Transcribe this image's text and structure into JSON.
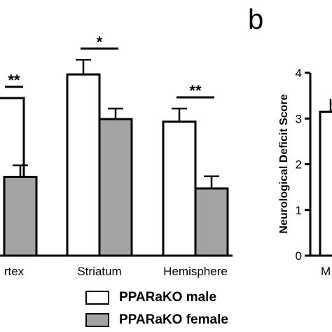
{
  "chart_data": [
    {
      "type": "bar",
      "panel": "a",
      "categories": [
        "rtex",
        "Striatum",
        "Hemisphere"
      ],
      "series": [
        {
          "name": "PPARaKO male",
          "color": "#ffffff",
          "values": [
            3.0,
            3.45,
            2.55
          ],
          "errors": [
            0.0,
            0.28,
            0.25
          ]
        },
        {
          "name": "PPARaKO female",
          "color": "#a3a3a3",
          "values": [
            1.5,
            2.6,
            1.28
          ],
          "errors": [
            0.22,
            0.2,
            0.23
          ]
        }
      ],
      "significance": [
        {
          "category": "rtex",
          "label": "**"
        },
        {
          "category": "Striatum",
          "label": "*"
        },
        {
          "category": "Hemisphere",
          "label": "**"
        }
      ],
      "legend_position": "bottom"
    },
    {
      "type": "bar",
      "panel": "b",
      "panel_label": "b",
      "ylabel": "Neurological Deficit Score",
      "yticks": [
        "0",
        "1",
        "2",
        "3",
        "4"
      ],
      "ylim": [
        0,
        4
      ],
      "categories": [
        "M"
      ],
      "series": [
        {
          "name": "PPARaKO male",
          "values": [
            3.15
          ]
        }
      ]
    }
  ]
}
